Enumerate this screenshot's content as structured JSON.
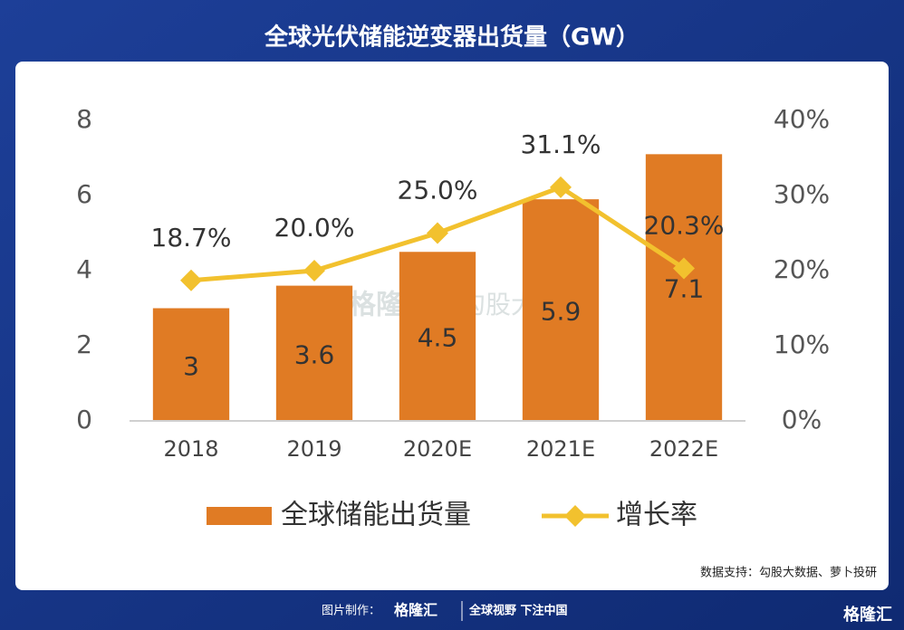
{
  "chart_data": {
    "type": "bar",
    "title": "全球光伏储能逆变器出货量（GW）",
    "categories": [
      "2018",
      "2019",
      "2020E",
      "2021E",
      "2022E"
    ],
    "series": [
      {
        "name": "全球储能出货量",
        "type": "bar",
        "color": "#e07b24",
        "values": [
          3,
          3.6,
          4.5,
          5.9,
          7.1
        ]
      },
      {
        "name": "增长率",
        "type": "line",
        "axis": "y2",
        "color": "#f2c12e",
        "values": [
          18.7,
          20,
          25,
          31.1,
          20.3
        ],
        "value_labels": [
          "18.7%",
          "20.0%",
          "25.0%",
          "31.1%",
          "20.3%"
        ]
      }
    ],
    "ylim": [
      0,
      8
    ],
    "yticks": [
      0,
      2,
      4,
      6,
      8
    ],
    "y2lim": [
      0,
      40
    ],
    "y2ticks": [
      {
        "value": 0,
        "label": "0%"
      },
      {
        "value": 10,
        "label": "10%"
      },
      {
        "value": 20,
        "label": "20%"
      },
      {
        "value": 30,
        "label": "30%"
      },
      {
        "value": 40,
        "label": "40%"
      }
    ],
    "source": "数据支持：勾股大数据、萝卜投研",
    "watermark": [
      "格隆汇",
      "勾股大数据"
    ]
  },
  "footer": {
    "maker_label": "图片制作：",
    "brand": "格隆汇",
    "slogan": "全球视野 下注中国",
    "corner_logo": "格隆汇"
  }
}
